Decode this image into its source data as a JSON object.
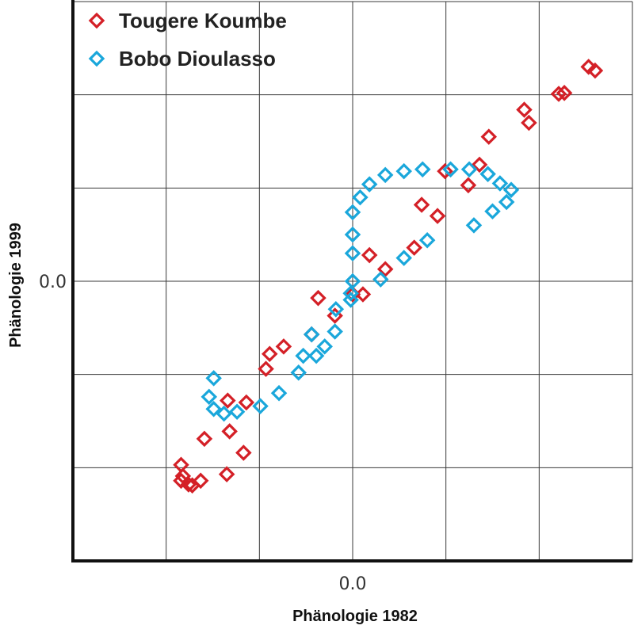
{
  "chart_data": {
    "type": "scatter",
    "xlabel": "Phänologie 1982",
    "ylabel": "Phänologie 1999",
    "xlim": [
      -3.0,
      3.0
    ],
    "ylim": [
      -3.0,
      3.0
    ],
    "x_ticks": [
      {
        "value": 0,
        "label": "0.0"
      }
    ],
    "y_ticks": [
      {
        "value": 0,
        "label": "0.0"
      }
    ],
    "grid": true,
    "legend_position": "top-left",
    "series": [
      {
        "name": "Tougere Koumbe",
        "color": "#d42027",
        "marker": "diamond",
        "points": [
          [
            -1.84,
            -1.97
          ],
          [
            -1.82,
            -2.09
          ],
          [
            -1.84,
            -2.14
          ],
          [
            -1.76,
            -2.18
          ],
          [
            -1.72,
            -2.19
          ],
          [
            -1.63,
            -2.14
          ],
          [
            -1.59,
            -1.69
          ],
          [
            -1.35,
            -2.07
          ],
          [
            -1.34,
            -1.28
          ],
          [
            -1.32,
            -1.61
          ],
          [
            -1.17,
            -1.84
          ],
          [
            -1.14,
            -1.3
          ],
          [
            -0.93,
            -0.94
          ],
          [
            -0.89,
            -0.78
          ],
          [
            -0.74,
            -0.7
          ],
          [
            -0.44,
            -0.57
          ],
          [
            -0.37,
            -0.18
          ],
          [
            -0.19,
            -0.37
          ],
          [
            0.0,
            -0.14
          ],
          [
            0.11,
            -0.14
          ],
          [
            0.18,
            0.28
          ],
          [
            0.35,
            0.13
          ],
          [
            0.66,
            0.36
          ],
          [
            0.74,
            0.82
          ],
          [
            0.91,
            0.7
          ],
          [
            0.99,
            1.18
          ],
          [
            1.24,
            1.03
          ],
          [
            1.36,
            1.25
          ],
          [
            1.46,
            1.55
          ],
          [
            1.84,
            1.84
          ],
          [
            1.89,
            1.7
          ],
          [
            2.21,
            2.01
          ],
          [
            2.27,
            2.02
          ],
          [
            2.53,
            2.3
          ],
          [
            2.6,
            2.26
          ]
        ]
      },
      {
        "name": "Bobo Dioulasso",
        "color": "#1aa7db",
        "marker": "diamond",
        "points": [
          [
            -1.49,
            -1.04
          ],
          [
            -1.54,
            -1.24
          ],
          [
            -1.49,
            -1.37
          ],
          [
            -1.38,
            -1.42
          ],
          [
            -1.24,
            -1.4
          ],
          [
            -0.99,
            -1.34
          ],
          [
            -0.79,
            -1.2
          ],
          [
            -0.58,
            -0.98
          ],
          [
            -0.53,
            -0.8
          ],
          [
            -0.44,
            -0.57
          ],
          [
            -0.39,
            -0.8
          ],
          [
            -0.3,
            -0.7
          ],
          [
            -0.19,
            -0.54
          ],
          [
            -0.18,
            -0.3
          ],
          [
            -0.02,
            -0.2
          ],
          [
            -0.02,
            -0.13
          ],
          [
            0.0,
            0.0
          ],
          [
            0.0,
            0.3
          ],
          [
            0.0,
            0.5
          ],
          [
            0.0,
            0.74
          ],
          [
            0.08,
            0.9
          ],
          [
            0.18,
            1.04
          ],
          [
            0.35,
            1.14
          ],
          [
            0.55,
            1.18
          ],
          [
            0.75,
            1.2
          ],
          [
            1.05,
            1.2
          ],
          [
            1.25,
            1.2
          ],
          [
            1.45,
            1.15
          ],
          [
            1.58,
            1.05
          ],
          [
            1.7,
            0.98
          ],
          [
            1.65,
            0.85
          ],
          [
            1.5,
            0.75
          ],
          [
            1.3,
            0.6
          ],
          [
            0.8,
            0.44
          ],
          [
            0.55,
            0.25
          ],
          [
            0.3,
            0.02
          ]
        ]
      }
    ]
  }
}
